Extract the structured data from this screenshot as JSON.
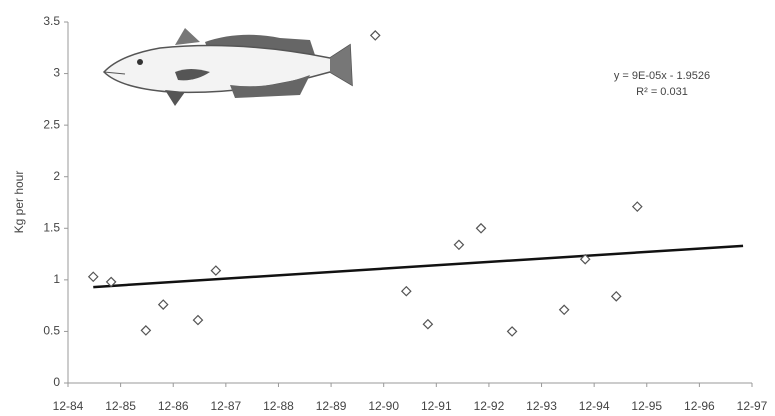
{
  "chart_data": {
    "type": "scatter",
    "y_label": "Kg per hour",
    "annotations": [
      "y = 9E-05x - 1.9526",
      "R² = 0.031"
    ],
    "xlim": [
      1984.92,
      1997.92
    ],
    "xticks": [
      {
        "value": 1984.92,
        "label": "12-84"
      },
      {
        "value": 1985.92,
        "label": "12-85"
      },
      {
        "value": 1986.92,
        "label": "12-86"
      },
      {
        "value": 1987.92,
        "label": "12-87"
      },
      {
        "value": 1988.92,
        "label": "12-88"
      },
      {
        "value": 1989.92,
        "label": "12-89"
      },
      {
        "value": 1990.92,
        "label": "12-90"
      },
      {
        "value": 1991.92,
        "label": "12-91"
      },
      {
        "value": 1992.92,
        "label": "12-92"
      },
      {
        "value": 1993.92,
        "label": "12-93"
      },
      {
        "value": 1994.92,
        "label": "12-94"
      },
      {
        "value": 1995.92,
        "label": "12-95"
      },
      {
        "value": 1996.92,
        "label": "12-96"
      },
      {
        "value": 1997.92,
        "label": "12-97"
      }
    ],
    "ylim": [
      0,
      3.5
    ],
    "yticks": [
      0,
      0.5,
      1,
      1.5,
      2,
      2.5,
      3,
      3.5
    ],
    "series": [
      {
        "color": "#555555",
        "x": [
          1985.4,
          1985.74,
          1986.4,
          1986.73,
          1987.39,
          1987.73,
          1990.76,
          1991.35,
          1991.76,
          1992.35,
          1992.77,
          1993.36,
          1994.35,
          1994.75,
          1995.34,
          1995.74
        ],
        "values": [
          1.03,
          0.98,
          0.51,
          0.76,
          0.61,
          1.09,
          3.37,
          0.89,
          0.57,
          1.34,
          1.5,
          0.5,
          0.71,
          1.2,
          0.84,
          1.71
        ]
      }
    ],
    "trendline": {
      "color": "#111111",
      "x": [
        1985.4,
        1997.75
      ],
      "values": [
        0.93,
        1.33
      ]
    }
  }
}
